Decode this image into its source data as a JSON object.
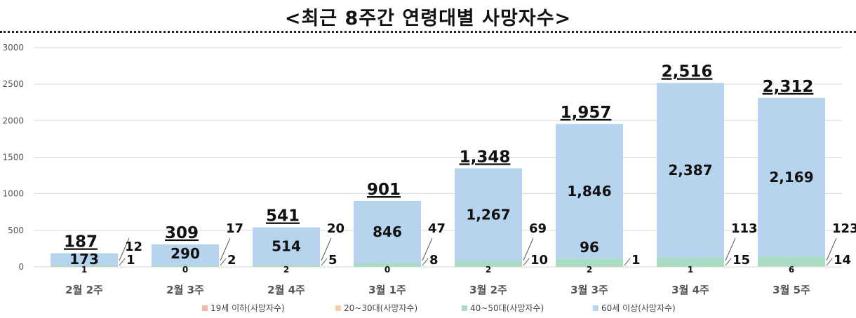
{
  "title": "<최근 8주간 연령대별 사망자수>",
  "chart_data": {
    "type": "bar",
    "stacked": true,
    "categories": [
      "2월 2주",
      "2월 3주",
      "2월 4주",
      "3월 1주",
      "3월 2주",
      "3월 3주",
      "3월 4주",
      "3월 5주"
    ],
    "ylim": [
      0,
      3000
    ],
    "yticks": [
      "0",
      "500",
      "1000",
      "1500",
      "2000",
      "2500",
      "3000"
    ],
    "grid": true,
    "legend_position": "bottom",
    "series": [
      {
        "name": "19세 이하(사망자수)",
        "color": "#f4b7a8",
        "values": [
          0,
          0,
          0,
          0,
          0,
          1,
          0,
          0
        ],
        "labels": [
          "",
          "",
          "",
          "",
          "",
          "1",
          "",
          ""
        ]
      },
      {
        "name": "20~30대(사망자수)",
        "color": "#f9cfa9",
        "values": [
          1,
          0,
          2,
          0,
          2,
          2,
          1,
          6
        ],
        "labels": [
          "1",
          "0",
          "2",
          "0",
          "2",
          "2",
          "1",
          "6"
        ]
      },
      {
        "name": "40~50대(사망자수)",
        "color": "#a9dcc4",
        "values": [
          13,
          19,
          25,
          55,
          79,
          108,
          128,
          137
        ],
        "labels": [
          "",
          "",
          "",
          "",
          "",
          "96",
          "",
          ""
        ]
      },
      {
        "name": "60세 이상(사망자수)",
        "color": "#b7d4ee",
        "values": [
          173,
          290,
          514,
          846,
          1267,
          1846,
          2387,
          2169
        ],
        "labels": [
          "173",
          "290",
          "514",
          "846",
          "1,267",
          "1,846",
          "2,387",
          "2,169"
        ]
      }
    ],
    "totals": [
      "187",
      "309",
      "541",
      "901",
      "1,348",
      "1,957",
      "2,516",
      "2,312"
    ],
    "annotations": [
      {
        "upper": "12",
        "lower": "1"
      },
      {
        "upper": "17",
        "lower": "2"
      },
      {
        "upper": "20",
        "lower": "5"
      },
      {
        "upper": "47",
        "lower": "8"
      },
      {
        "upper": "69",
        "lower": "10"
      },
      {
        "upper": "",
        "lower": "1"
      },
      {
        "upper": "113",
        "lower": "15"
      },
      {
        "upper": "123",
        "lower": "14"
      }
    ]
  }
}
